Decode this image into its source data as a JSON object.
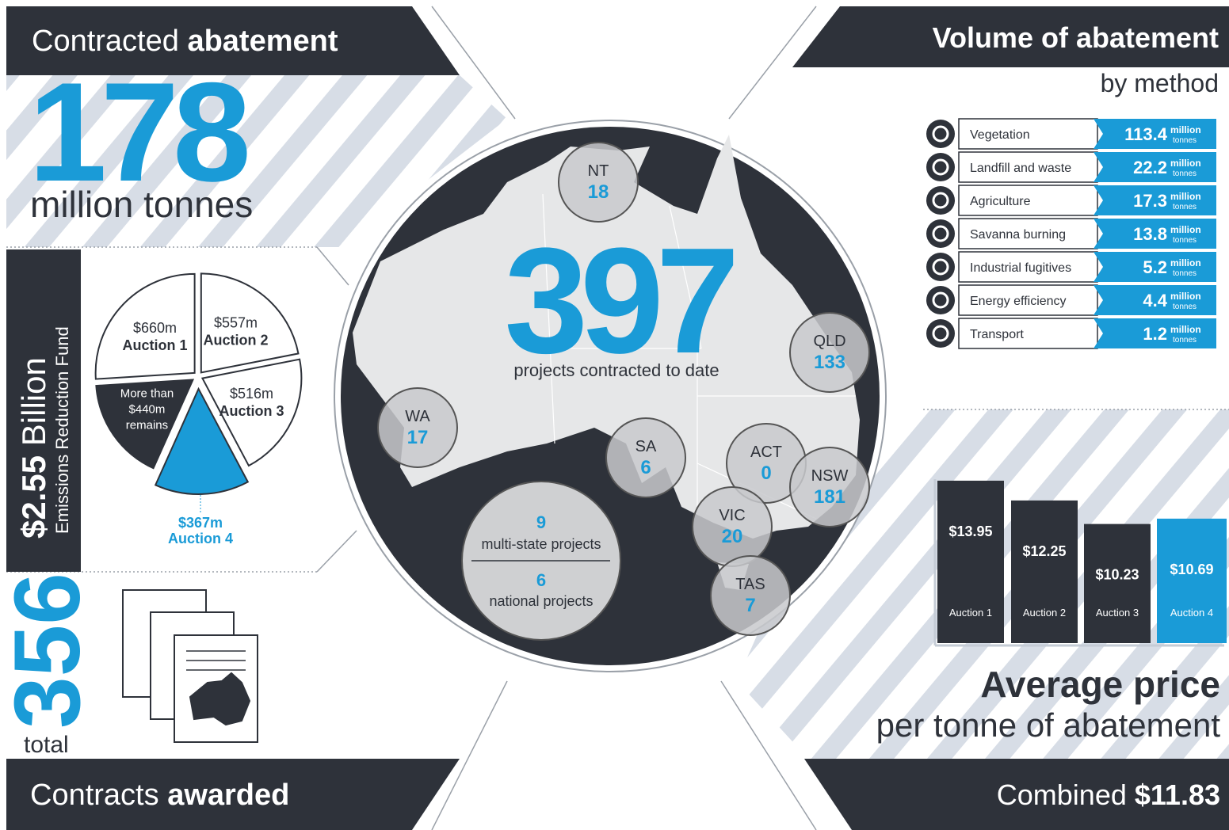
{
  "contracted_abatement": {
    "title": {
      "light": "Contracted",
      "bold": "abatement"
    },
    "value": "178",
    "unit": "million tonnes"
  },
  "fund": {
    "total": {
      "bold": "$2.55",
      "light": "Billion"
    },
    "subtitle": "Emissions Reduction Fund",
    "pie": [
      {
        "amount_label": "$660m",
        "label": "Auction 1",
        "value": 660,
        "color": "#ffffff"
      },
      {
        "amount_label": "$557m",
        "label": "Auction 2",
        "value": 557,
        "color": "#ffffff"
      },
      {
        "amount_label": "$516m",
        "label": "Auction 3",
        "value": 516,
        "color": "#ffffff"
      },
      {
        "amount_label": "$367m",
        "label": "Auction 4",
        "value": 367,
        "color": "#1a9bd7"
      },
      {
        "label_lines": [
          "More than",
          "$440m",
          "remains"
        ],
        "value": 440,
        "color": "#2e323a"
      }
    ]
  },
  "contracts": {
    "value": "356",
    "unit": "total",
    "title": {
      "light": "Contracts",
      "bold": "awarded"
    }
  },
  "projects": {
    "value": "397",
    "caption": "projects contracted to date",
    "states": [
      {
        "name": "NT",
        "value": 18
      },
      {
        "name": "QLD",
        "value": 133
      },
      {
        "name": "WA",
        "value": 17
      },
      {
        "name": "SA",
        "value": 6
      },
      {
        "name": "ACT",
        "value": 0
      },
      {
        "name": "NSW",
        "value": 181
      },
      {
        "name": "VIC",
        "value": 20
      },
      {
        "name": "TAS",
        "value": 7
      }
    ],
    "multi_state": {
      "value": 9,
      "label": "multi-state projects"
    },
    "national": {
      "value": 6,
      "label": "national projects"
    }
  },
  "volume": {
    "title": "Volume of abatement",
    "subtitle": "by method",
    "unit": [
      "million",
      "tonnes"
    ],
    "methods": [
      {
        "name": "Vegetation",
        "value": 113.4
      },
      {
        "name": "Landfill and waste",
        "value": 22.2
      },
      {
        "name": "Agriculture",
        "value": 17.3
      },
      {
        "name": "Savanna burning",
        "value": 13.8
      },
      {
        "name": "Industrial fugitives",
        "value": 5.2
      },
      {
        "name": "Energy efficiency",
        "value": 4.4
      },
      {
        "name": "Transport",
        "value": 1.2
      }
    ]
  },
  "price": {
    "title": {
      "bold": "Average price",
      "light": "per tonne of abatement"
    },
    "bars": [
      {
        "label": "Auction 1",
        "value": 13.95,
        "value_label": "$13.95",
        "color": "#2e323a"
      },
      {
        "label": "Auction 2",
        "value": 12.25,
        "value_label": "$12.25",
        "color": "#2e323a"
      },
      {
        "label": "Auction 3",
        "value": 10.23,
        "value_label": "$10.23",
        "color": "#2e323a"
      },
      {
        "label": "Auction 4",
        "value": 10.69,
        "value_label": "$10.69",
        "color": "#1a9bd7"
      }
    ],
    "combined": {
      "light": "Combined",
      "bold": "$11.83"
    }
  }
}
